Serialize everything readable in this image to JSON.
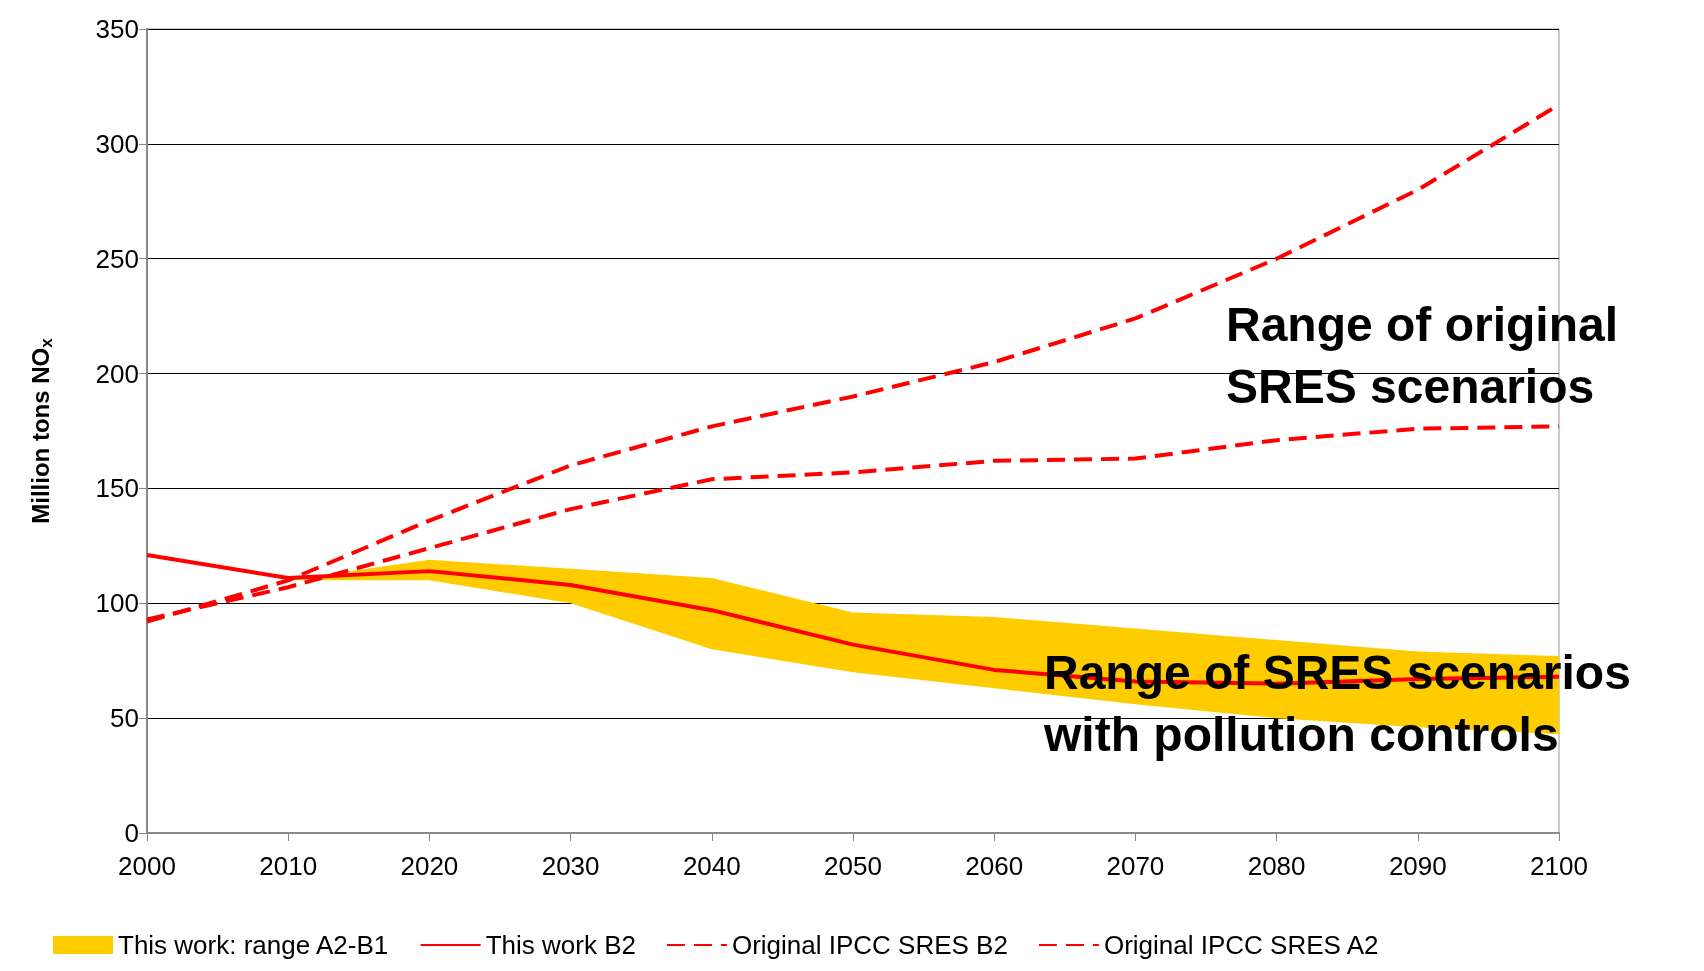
{
  "chart_data": {
    "type": "line",
    "xlabel": null,
    "ylabel": "Million tons NO$_{x}$",
    "xlim": [
      2000,
      2100
    ],
    "xticks": [
      2000,
      2010,
      2020,
      2030,
      2040,
      2050,
      2060,
      2070,
      2080,
      2090,
      2100
    ],
    "ylim": [
      0,
      350
    ],
    "yticks": [
      0,
      50,
      100,
      150,
      200,
      250,
      300,
      350
    ],
    "grid": "y",
    "legend": "bottom",
    "series": [
      {
        "name": "This work: range A2-B1",
        "type": "area",
        "color": "#ffcc00",
        "x": [
          2010,
          2020,
          2030,
          2040,
          2050,
          2060,
          2070,
          2080,
          2090,
          2100
        ],
        "values": [
          null,
          null,
          null,
          null,
          null,
          null,
          null,
          null,
          null,
          null
        ],
        "lower": [
          110,
          110,
          100,
          80,
          70,
          63,
          56,
          50,
          46,
          43
        ],
        "upper": [
          110,
          119,
          115,
          111,
          96,
          94,
          89,
          84,
          79,
          77
        ]
      },
      {
        "name": "This work B2",
        "color": "#ff0000",
        "line_style": "solid",
        "x": [
          2000,
          2010,
          2020,
          2030,
          2040,
          2050,
          2060,
          2070,
          2080,
          2090,
          2100
        ],
        "values": [
          121,
          111,
          114,
          108,
          97,
          82,
          71,
          66,
          65,
          67,
          68
        ]
      },
      {
        "name": "Original IPCC SRES B2",
        "color": "#ff0000",
        "line_style": "dashed",
        "x": [
          2000,
          2010,
          2020,
          2030,
          2040,
          2050,
          2060,
          2070,
          2080,
          2090,
          2100
        ],
        "values": [
          93,
          107,
          124,
          141,
          154,
          157,
          162,
          163,
          171,
          176,
          177
        ]
      },
      {
        "name": "Original IPCC SRES A2",
        "color": "#ff0000",
        "line_style": "dashed",
        "x": [
          2000,
          2010,
          2020,
          2030,
          2040,
          2050,
          2060,
          2070,
          2080,
          2090,
          2100
        ],
        "values": [
          92,
          110,
          136,
          160,
          177,
          190,
          205,
          224,
          250,
          280,
          317
        ]
      }
    ],
    "annotations": [
      "Range of original\nSRES scenarios",
      "Range of SRES scenarios\nwith pollution controls"
    ]
  }
}
